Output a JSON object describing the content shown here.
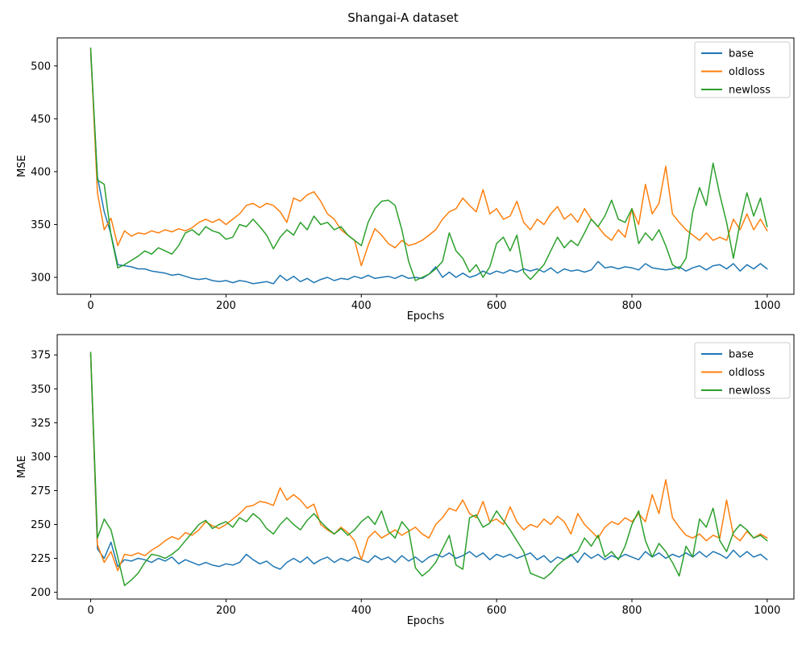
{
  "figure": {
    "title": "Shangai-A dataset",
    "background": "#ffffff"
  },
  "colors": {
    "base": "#1f77b4",
    "oldloss": "#ff7f0e",
    "newloss": "#2ca02c",
    "axis": "#000000",
    "legend_border": "#cccccc"
  },
  "chart_data": [
    {
      "type": "line",
      "title": "",
      "xlabel": "Epochs",
      "ylabel": "MSE",
      "xlim": [
        -49.5,
        1039.5
      ],
      "ylim": [
        284,
        526.5
      ],
      "xticks": [
        0,
        200,
        400,
        600,
        800,
        1000
      ],
      "yticks": [
        300,
        350,
        400,
        450,
        500
      ],
      "grid": false,
      "legend_position": "upper right",
      "legend": [
        "base",
        "oldloss",
        "newloss"
      ],
      "x": [
        0,
        10,
        20,
        30,
        40,
        50,
        60,
        70,
        80,
        90,
        100,
        110,
        120,
        130,
        140,
        150,
        160,
        170,
        180,
        190,
        200,
        210,
        220,
        230,
        240,
        250,
        260,
        270,
        280,
        290,
        300,
        310,
        320,
        330,
        340,
        350,
        360,
        370,
        380,
        390,
        400,
        410,
        420,
        430,
        440,
        450,
        460,
        470,
        480,
        490,
        500,
        510,
        520,
        530,
        540,
        550,
        560,
        570,
        580,
        590,
        600,
        610,
        620,
        630,
        640,
        650,
        660,
        670,
        680,
        690,
        700,
        710,
        720,
        730,
        740,
        750,
        760,
        770,
        780,
        790,
        800,
        810,
        820,
        830,
        840,
        850,
        860,
        870,
        880,
        890,
        900,
        910,
        920,
        930,
        940,
        950,
        960,
        970,
        980,
        990,
        1000
      ],
      "series": [
        {
          "name": "base",
          "color": "#1f77b4",
          "values": [
            512,
            395,
            362,
            341,
            312,
            311,
            310,
            308,
            308,
            306,
            305,
            304,
            302,
            303,
            301,
            299,
            298,
            299,
            297,
            296,
            297,
            295,
            297,
            296,
            294,
            295,
            296,
            294,
            302,
            297,
            301,
            296,
            299,
            295,
            298,
            300,
            297,
            299,
            298,
            301,
            299,
            302,
            299,
            300,
            301,
            299,
            302,
            299,
            300,
            299,
            303,
            310,
            300,
            305,
            300,
            304,
            300,
            302,
            306,
            303,
            306,
            304,
            307,
            305,
            308,
            306,
            308,
            305,
            309,
            304,
            308,
            306,
            307,
            305,
            307,
            315,
            309,
            310,
            308,
            310,
            309,
            307,
            313,
            309,
            308,
            307,
            308,
            310,
            306,
            309,
            311,
            307,
            311,
            312,
            308,
            313,
            306,
            312,
            308,
            313,
            308
          ]
        },
        {
          "name": "oldloss",
          "color": "#ff7f0e",
          "values": [
            516,
            380,
            345,
            356,
            330,
            344,
            339,
            342,
            341,
            344,
            342,
            345,
            343,
            346,
            344,
            347,
            352,
            355,
            352,
            355,
            350,
            355,
            360,
            368,
            370,
            366,
            370,
            368,
            362,
            352,
            375,
            372,
            378,
            381,
            372,
            360,
            355,
            345,
            340,
            335,
            311,
            330,
            346,
            340,
            332,
            328,
            335,
            330,
            332,
            335,
            340,
            345,
            355,
            362,
            365,
            375,
            368,
            362,
            383,
            360,
            365,
            355,
            358,
            372,
            352,
            345,
            355,
            350,
            360,
            367,
            355,
            360,
            352,
            365,
            355,
            348,
            340,
            335,
            345,
            338,
            365,
            350,
            388,
            360,
            370,
            405,
            360,
            352,
            345,
            340,
            335,
            342,
            335,
            338,
            335,
            355,
            345,
            360,
            345,
            355,
            344
          ]
        },
        {
          "name": "newloss",
          "color": "#2ca02c",
          "values": [
            517,
            392,
            388,
            340,
            309,
            312,
            316,
            320,
            325,
            322,
            328,
            325,
            322,
            330,
            342,
            345,
            340,
            348,
            344,
            342,
            336,
            338,
            350,
            348,
            355,
            348,
            340,
            327,
            338,
            345,
            340,
            352,
            345,
            358,
            350,
            352,
            345,
            348,
            340,
            335,
            330,
            352,
            365,
            372,
            373,
            368,
            345,
            315,
            297,
            300,
            303,
            308,
            315,
            342,
            325,
            318,
            305,
            312,
            300,
            310,
            332,
            338,
            325,
            340,
            305,
            298,
            305,
            312,
            325,
            338,
            328,
            335,
            330,
            342,
            355,
            348,
            358,
            373,
            355,
            352,
            365,
            332,
            342,
            335,
            345,
            330,
            312,
            308,
            318,
            362,
            385,
            368,
            408,
            378,
            352,
            318,
            352,
            380,
            358,
            375,
            348
          ]
        }
      ]
    },
    {
      "type": "line",
      "title": "",
      "xlabel": "Epochs",
      "ylabel": "MAE",
      "xlim": [
        -49.5,
        1039.5
      ],
      "ylim": [
        195,
        390
      ],
      "xticks": [
        0,
        200,
        400,
        600,
        800,
        1000
      ],
      "yticks": [
        200,
        225,
        250,
        275,
        300,
        325,
        350,
        375
      ],
      "grid": false,
      "legend_position": "upper right",
      "legend": [
        "base",
        "oldloss",
        "newloss"
      ],
      "x": [
        0,
        10,
        20,
        30,
        40,
        50,
        60,
        70,
        80,
        90,
        100,
        110,
        120,
        130,
        140,
        150,
        160,
        170,
        180,
        190,
        200,
        210,
        220,
        230,
        240,
        250,
        260,
        270,
        280,
        290,
        300,
        310,
        320,
        330,
        340,
        350,
        360,
        370,
        380,
        390,
        400,
        410,
        420,
        430,
        440,
        450,
        460,
        470,
        480,
        490,
        500,
        510,
        520,
        530,
        540,
        550,
        560,
        570,
        580,
        590,
        600,
        610,
        620,
        630,
        640,
        650,
        660,
        670,
        680,
        690,
        700,
        710,
        720,
        730,
        740,
        750,
        760,
        770,
        780,
        790,
        800,
        810,
        820,
        830,
        840,
        850,
        860,
        870,
        880,
        890,
        900,
        910,
        920,
        930,
        940,
        950,
        960,
        970,
        980,
        990,
        1000
      ],
      "series": [
        {
          "name": "base",
          "color": "#1f77b4",
          "values": [
            375,
            232,
            225,
            237,
            219,
            224,
            223,
            225,
            224,
            222,
            225,
            223,
            226,
            221,
            224,
            222,
            220,
            222,
            220,
            219,
            221,
            220,
            222,
            228,
            224,
            221,
            223,
            219,
            217,
            222,
            225,
            222,
            226,
            221,
            224,
            226,
            222,
            225,
            223,
            226,
            224,
            222,
            227,
            224,
            226,
            222,
            227,
            223,
            226,
            222,
            226,
            228,
            226,
            229,
            225,
            227,
            230,
            226,
            229,
            224,
            228,
            226,
            228,
            225,
            227,
            229,
            224,
            227,
            222,
            226,
            224,
            228,
            222,
            229,
            225,
            228,
            224,
            227,
            225,
            228,
            226,
            224,
            230,
            226,
            229,
            225,
            228,
            226,
            229,
            226,
            230,
            226,
            230,
            228,
            225,
            231,
            226,
            230,
            226,
            228,
            224
          ]
        },
        {
          "name": "oldloss",
          "color": "#ff7f0e",
          "values": [
            376,
            235,
            222,
            230,
            216,
            228,
            227,
            229,
            227,
            231,
            234,
            238,
            241,
            239,
            244,
            242,
            246,
            252,
            249,
            247,
            250,
            254,
            258,
            263,
            264,
            267,
            266,
            264,
            277,
            268,
            272,
            268,
            262,
            265,
            250,
            246,
            243,
            248,
            244,
            238,
            224,
            240,
            245,
            240,
            243,
            246,
            242,
            245,
            248,
            243,
            240,
            250,
            255,
            262,
            260,
            268,
            258,
            255,
            267,
            252,
            254,
            250,
            263,
            252,
            246,
            250,
            248,
            254,
            250,
            256,
            252,
            243,
            258,
            250,
            245,
            240,
            248,
            252,
            250,
            255,
            252,
            258,
            252,
            272,
            258,
            283,
            255,
            248,
            242,
            240,
            243,
            238,
            242,
            240,
            268,
            242,
            238,
            245,
            240,
            243,
            240
          ]
        },
        {
          "name": "newloss",
          "color": "#2ca02c",
          "values": [
            377,
            240,
            254,
            246,
            226,
            205,
            209,
            214,
            222,
            228,
            227,
            225,
            228,
            232,
            238,
            244,
            250,
            253,
            247,
            250,
            252,
            248,
            255,
            252,
            258,
            254,
            247,
            243,
            250,
            255,
            250,
            246,
            253,
            258,
            252,
            247,
            243,
            247,
            242,
            246,
            252,
            256,
            250,
            260,
            245,
            240,
            252,
            246,
            218,
            212,
            216,
            222,
            232,
            242,
            220,
            217,
            255,
            257,
            248,
            251,
            260,
            253,
            246,
            238,
            230,
            214,
            212,
            210,
            214,
            220,
            224,
            227,
            230,
            240,
            234,
            242,
            226,
            230,
            224,
            234,
            250,
            260,
            238,
            226,
            236,
            230,
            222,
            212,
            234,
            226,
            254,
            248,
            262,
            238,
            230,
            244,
            250,
            246,
            240,
            242,
            238
          ]
        }
      ]
    }
  ]
}
